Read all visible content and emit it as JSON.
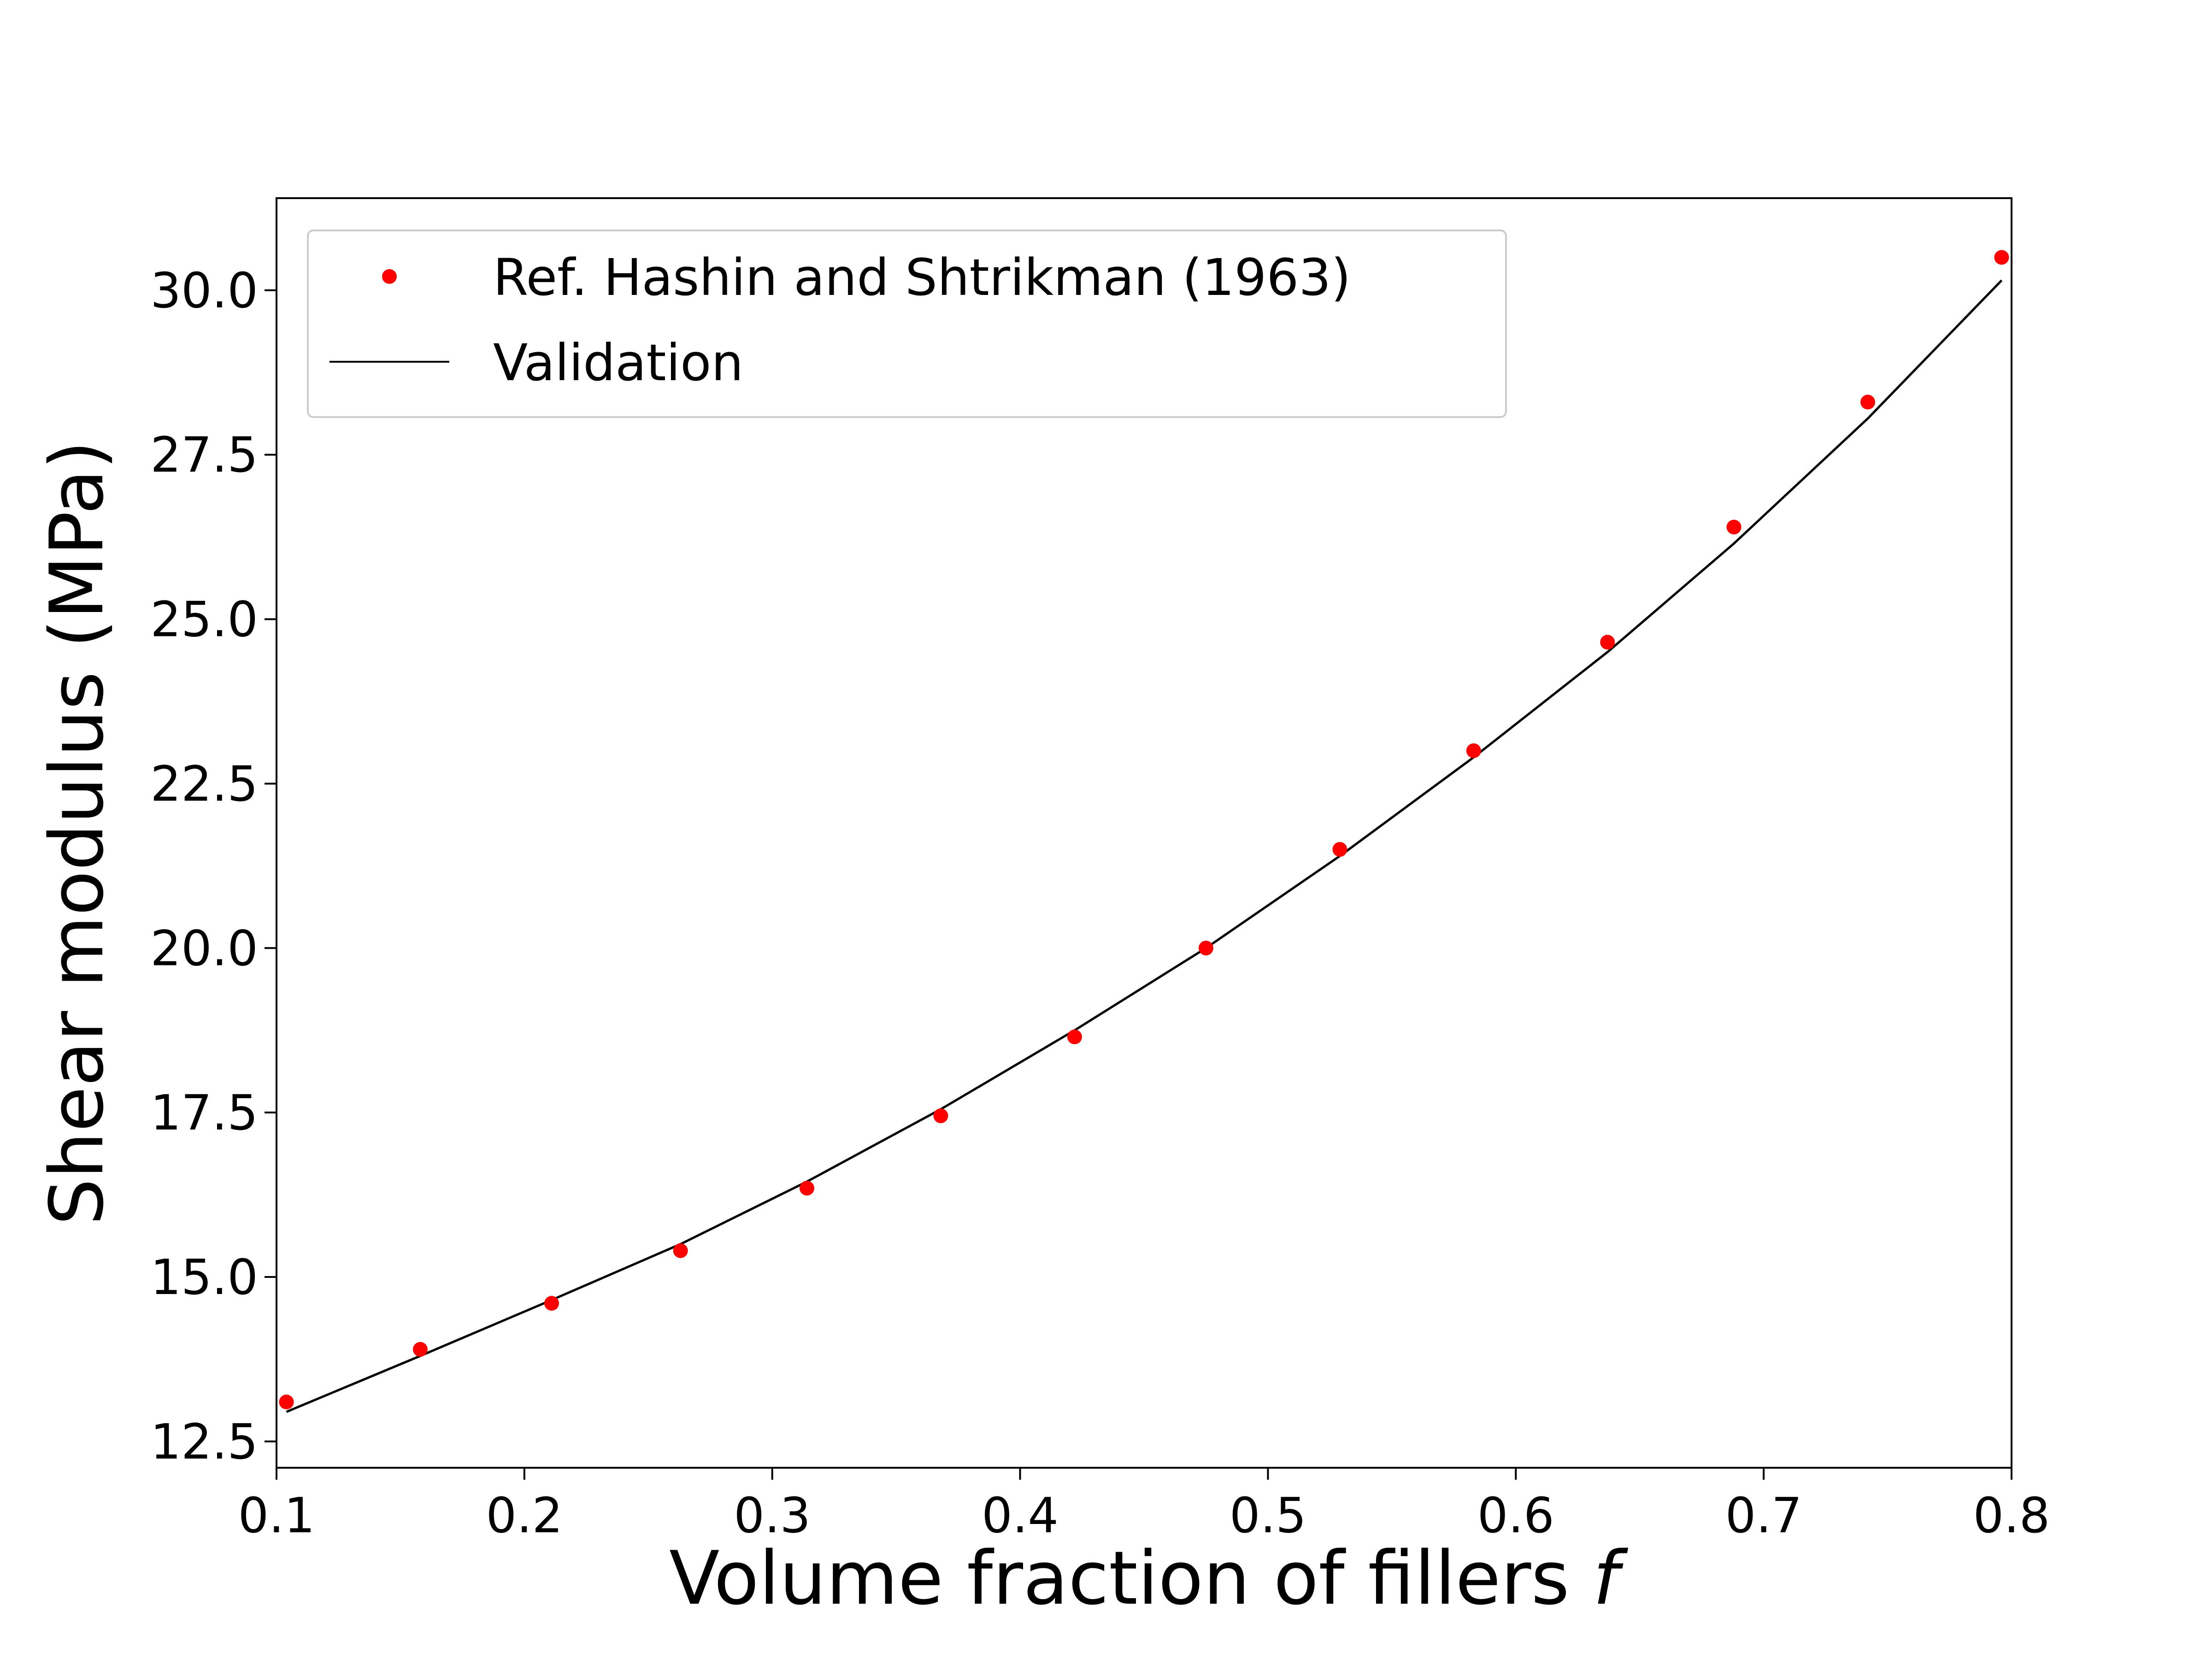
{
  "chart_data": {
    "type": "scatter",
    "title": "",
    "xlabel": "Volume fraction of fillers f",
    "xlabel_main": "Volume fraction of fillers ",
    "xlabel_symbol": "f",
    "ylabel": "Shear modulus (MPa)",
    "xlim": [
      0.1,
      0.8
    ],
    "ylim": [
      12.1,
      31.4
    ],
    "xticks": [
      0.1,
      0.2,
      0.3,
      0.4,
      0.5,
      0.6,
      0.7,
      0.8
    ],
    "xtick_labels": [
      "0.1",
      "0.2",
      "0.3",
      "0.4",
      "0.5",
      "0.6",
      "0.7",
      "0.8"
    ],
    "yticks": [
      12.5,
      15.0,
      17.5,
      20.0,
      22.5,
      25.0,
      27.5,
      30.0
    ],
    "ytick_labels": [
      "12.5",
      "15.0",
      "17.5",
      "20.0",
      "22.5",
      "25.0",
      "27.5",
      "30.0"
    ],
    "grid": false,
    "legend_position": "upper-left",
    "series": [
      {
        "name": "Ref. Hashin and Shtrikman (1963)",
        "kind": "scatter",
        "color": "#ff0000",
        "x": [
          0.104,
          0.158,
          0.211,
          0.263,
          0.314,
          0.368,
          0.422,
          0.475,
          0.529,
          0.583,
          0.637,
          0.688,
          0.742,
          0.796
        ],
        "y": [
          13.1,
          13.9,
          14.6,
          15.4,
          16.35,
          17.45,
          18.65,
          20.0,
          21.5,
          23.0,
          24.65,
          26.4,
          28.3,
          30.5
        ]
      },
      {
        "name": "Validation",
        "kind": "line",
        "color": "#000000",
        "x": [
          0.104,
          0.158,
          0.211,
          0.263,
          0.314,
          0.368,
          0.422,
          0.475,
          0.529,
          0.583,
          0.637,
          0.688,
          0.742,
          0.796
        ],
        "y": [
          12.95,
          13.8,
          14.65,
          15.5,
          16.45,
          17.55,
          18.75,
          20.0,
          21.4,
          22.9,
          24.5,
          26.15,
          28.05,
          30.15
        ]
      }
    ]
  }
}
